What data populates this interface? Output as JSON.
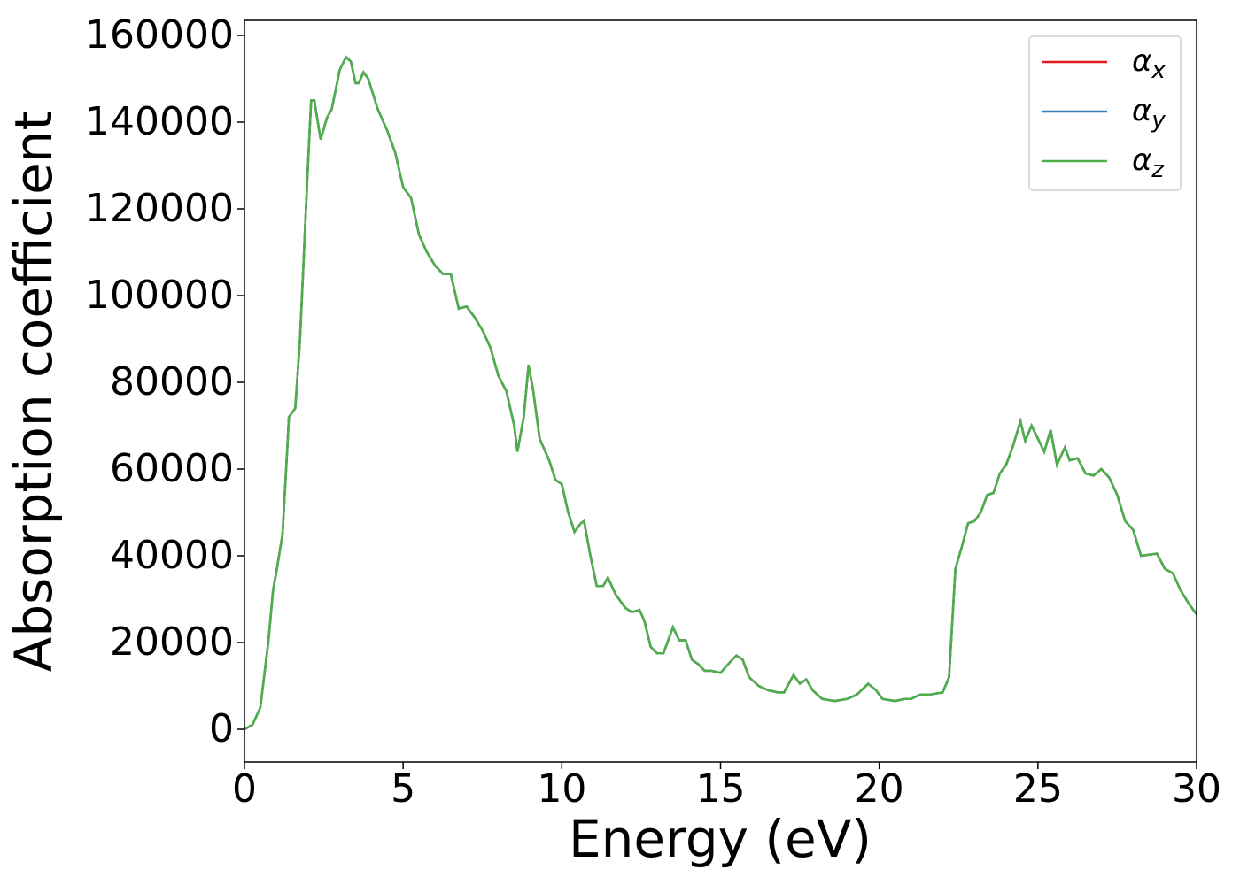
{
  "chart_data": {
    "type": "line",
    "xlabel": "Energy (eV)",
    "ylabel": "Absorption coefficient",
    "xlim": [
      0,
      30
    ],
    "ylim": [
      -7550,
      163470
    ],
    "xticks": [
      0,
      5,
      10,
      15,
      20,
      25,
      30
    ],
    "yticks": [
      0,
      20000,
      40000,
      60000,
      80000,
      100000,
      120000,
      140000,
      160000
    ],
    "legend": "upper right",
    "x": [
      0,
      0.25,
      0.5,
      0.75,
      0.9,
      1.0,
      1.2,
      1.35,
      1.4,
      1.5,
      1.6,
      1.75,
      2.0,
      2.1,
      2.2,
      2.4,
      2.6,
      2.75,
      3.0,
      3.2,
      3.35,
      3.5,
      3.6,
      3.75,
      3.9,
      4.2,
      4.5,
      4.75,
      5.0,
      5.25,
      5.5,
      5.75,
      6.0,
      6.25,
      6.5,
      6.75,
      7.0,
      7.25,
      7.5,
      7.75,
      8.0,
      8.25,
      8.5,
      8.6,
      8.8,
      8.95,
      9.1,
      9.3,
      9.6,
      9.8,
      10.0,
      10.2,
      10.4,
      10.6,
      10.7,
      10.9,
      11.1,
      11.3,
      11.45,
      11.7,
      12.0,
      12.2,
      12.45,
      12.6,
      12.8,
      13.0,
      13.2,
      13.5,
      13.7,
      13.9,
      14.1,
      14.3,
      14.5,
      14.7,
      15.0,
      15.3,
      15.5,
      15.7,
      15.9,
      16.2,
      16.5,
      16.8,
      17.0,
      17.3,
      17.5,
      17.7,
      17.9,
      18.2,
      18.6,
      19.0,
      19.3,
      19.65,
      19.9,
      20.1,
      20.5,
      20.8,
      21.0,
      21.3,
      21.6,
      22.0,
      22.2,
      22.4,
      22.6,
      22.8,
      23.0,
      23.2,
      23.4,
      23.6,
      23.8,
      24.0,
      24.2,
      24.45,
      24.6,
      24.8,
      25.0,
      25.2,
      25.4,
      25.6,
      25.85,
      26.0,
      26.25,
      26.5,
      26.75,
      27.0,
      27.25,
      27.5,
      27.75,
      28.0,
      28.25,
      28.75,
      29.0,
      29.25,
      29.5,
      29.75,
      30.0
    ],
    "series": [
      {
        "name": "αx",
        "color": "#e41a1c",
        "values": [
          0,
          1000,
          5000,
          20000,
          32000,
          36000,
          45000,
          65000,
          72000,
          73000,
          74000,
          90000,
          130000,
          145000,
          145000,
          136000,
          141000,
          143000,
          152000,
          155000,
          154000,
          149000,
          149000,
          151500,
          150000,
          143000,
          138000,
          133000,
          125000,
          122500,
          114000,
          110000,
          107000,
          105000,
          105000,
          97000,
          97500,
          95000,
          92000,
          88000,
          81500,
          78000,
          70000,
          64000,
          72000,
          84000,
          78000,
          67000,
          62000,
          57500,
          56500,
          50000,
          45500,
          47500,
          48000,
          40000,
          33000,
          33000,
          35000,
          31000,
          28000,
          27000,
          27500,
          25000,
          19000,
          17500,
          17500,
          23500,
          20500,
          20500,
          16000,
          15000,
          13500,
          13500,
          13000,
          15500,
          17000,
          16000,
          12000,
          10000,
          9000,
          8500,
          8500,
          12500,
          10500,
          11500,
          9000,
          7000,
          6500,
          7000,
          8000,
          10500,
          9000,
          7000,
          6500,
          7000,
          7000,
          8000,
          8000,
          8500,
          12000,
          37000,
          42000,
          47500,
          48000,
          50000,
          54000,
          54500,
          59000,
          61000,
          65000,
          71000,
          66500,
          70000,
          67000,
          64000,
          69000,
          61000,
          65000,
          62000,
          62500,
          59000,
          58500,
          60000,
          58000,
          54000,
          48000,
          46000,
          40000,
          40500,
          37000,
          36000,
          32000,
          29000,
          26500
        ]
      },
      {
        "name": "αy",
        "color": "#377eb8",
        "values": [
          0,
          1000,
          5000,
          20000,
          32000,
          36000,
          45000,
          65000,
          72000,
          73000,
          74000,
          90000,
          130000,
          145000,
          145000,
          136000,
          141000,
          143000,
          152000,
          155000,
          154000,
          149000,
          149000,
          151500,
          150000,
          143000,
          138000,
          133000,
          125000,
          122500,
          114000,
          110000,
          107000,
          105000,
          105000,
          97000,
          97500,
          95000,
          92000,
          88000,
          81500,
          78000,
          70000,
          64000,
          72000,
          84000,
          78000,
          67000,
          62000,
          57500,
          56500,
          50000,
          45500,
          47500,
          48000,
          40000,
          33000,
          33000,
          35000,
          31000,
          28000,
          27000,
          27500,
          25000,
          19000,
          17500,
          17500,
          23500,
          20500,
          20500,
          16000,
          15000,
          13500,
          13500,
          13000,
          15500,
          17000,
          16000,
          12000,
          10000,
          9000,
          8500,
          8500,
          12500,
          10500,
          11500,
          9000,
          7000,
          6500,
          7000,
          8000,
          10500,
          9000,
          7000,
          6500,
          7000,
          7000,
          8000,
          8000,
          8500,
          12000,
          37000,
          42000,
          47500,
          48000,
          50000,
          54000,
          54500,
          59000,
          61000,
          65000,
          71000,
          66500,
          70000,
          67000,
          64000,
          69000,
          61000,
          65000,
          62000,
          62500,
          59000,
          58500,
          60000,
          58000,
          54000,
          48000,
          46000,
          40000,
          40500,
          37000,
          36000,
          32000,
          29000,
          26500
        ]
      },
      {
        "name": "αz",
        "color": "#4daf4a",
        "values": [
          0,
          1000,
          5000,
          20000,
          32000,
          36000,
          45000,
          65000,
          72000,
          73000,
          74000,
          90000,
          130000,
          145000,
          145000,
          136000,
          141000,
          143000,
          152000,
          155000,
          154000,
          149000,
          149000,
          151500,
          150000,
          143000,
          138000,
          133000,
          125000,
          122500,
          114000,
          110000,
          107000,
          105000,
          105000,
          97000,
          97500,
          95000,
          92000,
          88000,
          81500,
          78000,
          70000,
          64000,
          72000,
          84000,
          78000,
          67000,
          62000,
          57500,
          56500,
          50000,
          45500,
          47500,
          48000,
          40000,
          33000,
          33000,
          35000,
          31000,
          28000,
          27000,
          27500,
          25000,
          19000,
          17500,
          17500,
          23500,
          20500,
          20500,
          16000,
          15000,
          13500,
          13500,
          13000,
          15500,
          17000,
          16000,
          12000,
          10000,
          9000,
          8500,
          8500,
          12500,
          10500,
          11500,
          9000,
          7000,
          6500,
          7000,
          8000,
          10500,
          9000,
          7000,
          6500,
          7000,
          7000,
          8000,
          8000,
          8500,
          12000,
          37000,
          42000,
          47500,
          48000,
          50000,
          54000,
          54500,
          59000,
          61000,
          65000,
          71000,
          66500,
          70000,
          67000,
          64000,
          69000,
          61000,
          65000,
          62000,
          62500,
          59000,
          58500,
          60000,
          58000,
          54000,
          48000,
          46000,
          40000,
          40500,
          37000,
          36000,
          32000,
          29000,
          26500
        ]
      }
    ]
  }
}
